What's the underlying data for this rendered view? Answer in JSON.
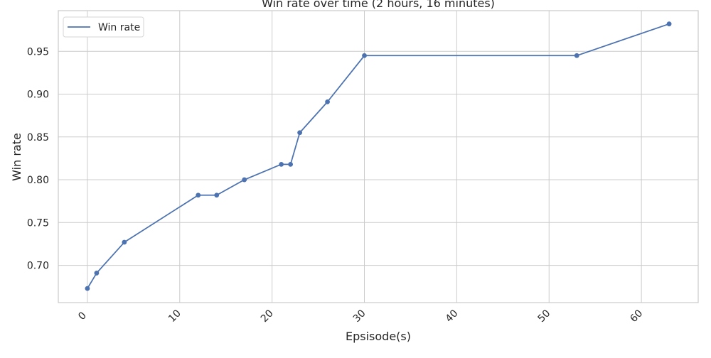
{
  "chart_data": {
    "type": "line",
    "title": "Win rate over time (2 hours, 16 minutes)",
    "xlabel": "Epsisode(s)",
    "ylabel": "Win rate",
    "xlim": [
      -3.15,
      66.15
    ],
    "ylim": [
      0.6565,
      0.9975
    ],
    "xticks": [
      0,
      10,
      20,
      30,
      40,
      50,
      60
    ],
    "xtick_labels": [
      "0",
      "10",
      "20",
      "30",
      "40",
      "50",
      "60"
    ],
    "yticks": [
      0.7,
      0.75,
      0.8,
      0.85,
      0.9,
      0.95
    ],
    "ytick_labels": [
      "0.70",
      "0.75",
      "0.80",
      "0.85",
      "0.90",
      "0.95"
    ],
    "grid": true,
    "legend_position": "top-left",
    "series": [
      {
        "name": "Win rate",
        "color": "#4c72b0",
        "x": [
          0,
          1,
          4,
          12,
          14,
          17,
          21,
          22,
          23,
          26,
          30,
          53,
          63
        ],
        "y": [
          0.673,
          0.691,
          0.727,
          0.782,
          0.782,
          0.8,
          0.818,
          0.818,
          0.855,
          0.891,
          0.945,
          0.945,
          0.982
        ]
      }
    ]
  }
}
